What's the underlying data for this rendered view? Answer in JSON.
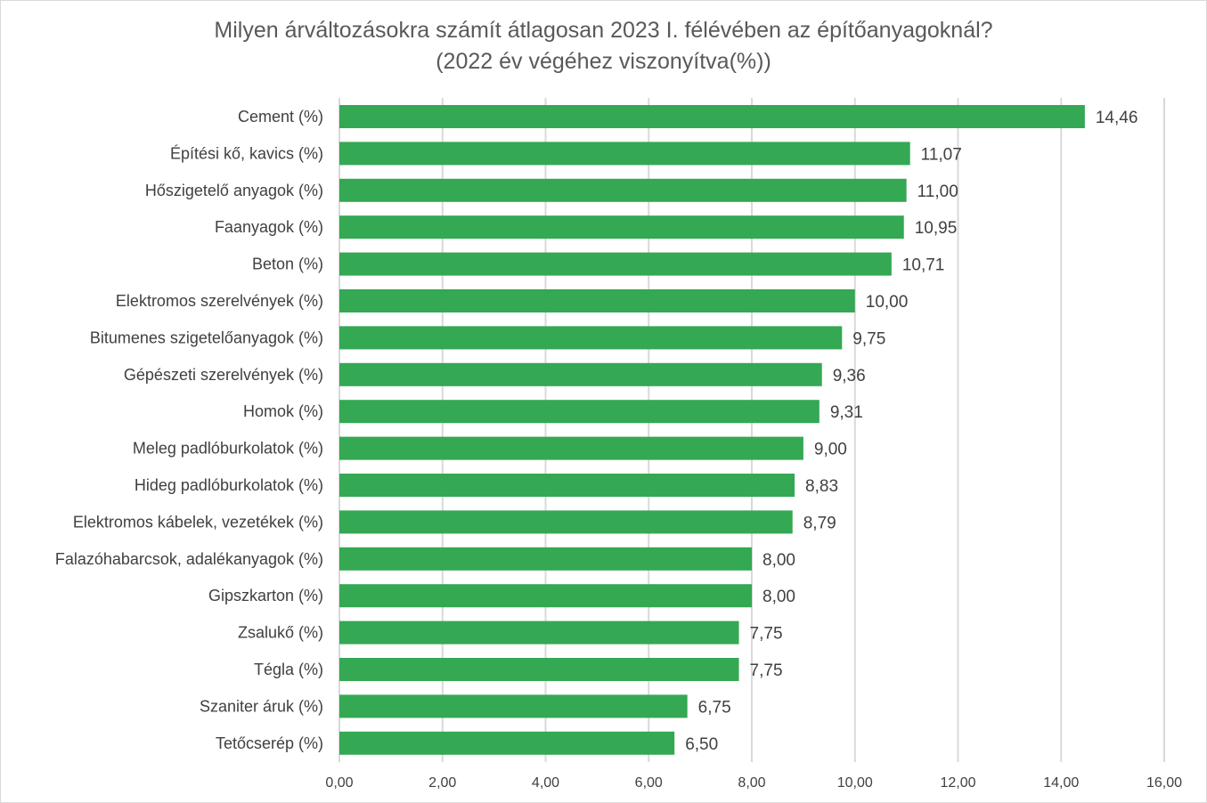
{
  "chart_data": {
    "type": "bar",
    "orientation": "horizontal",
    "title": "Milyen árváltozásokra számít átlagosan 2023 I. félévében az építőanyagoknál?",
    "subtitle": "(2022 év végéhez viszonyítva(%))",
    "categories": [
      "Cement (%)",
      "Építési kő, kavics (%)",
      "Hőszigetelő anyagok (%)",
      "Faanyagok (%)",
      "Beton (%)",
      "Elektromos szerelvények (%)",
      "Bitumenes szigetelőanyagok (%)",
      "Gépészeti szerelvények (%)",
      "Homok (%)",
      "Meleg padlóburkolatok (%)",
      "Hideg padlóburkolatok (%)",
      "Elektromos kábelek, vezetékek (%)",
      "Falazóhabarcsok, adalékanyagok (%)",
      "Gipszkarton (%)",
      "Zsalukő (%)",
      "Tégla (%)",
      "Szaniter áruk (%)",
      "Tetőcserép (%)"
    ],
    "values": [
      14.46,
      11.07,
      11.0,
      10.95,
      10.71,
      10.0,
      9.75,
      9.36,
      9.31,
      9.0,
      8.83,
      8.79,
      8.0,
      8.0,
      7.75,
      7.75,
      6.75,
      6.5
    ],
    "data_labels": [
      "14,46",
      "11,07",
      "11,00",
      "10,95",
      "10,71",
      "10,00",
      "9,75",
      "9,36",
      "9,31",
      "9,00",
      "8,83",
      "8,79",
      "8,00",
      "8,00",
      "7,75",
      "7,75",
      "6,75",
      "6,50"
    ],
    "xlim": [
      0,
      16
    ],
    "x_ticks": [
      "0,00",
      "2,00",
      "4,00",
      "6,00",
      "8,00",
      "10,00",
      "12,00",
      "14,00",
      "16,00"
    ],
    "grid": "vertical",
    "legend": "none",
    "bar_color": "#34a853"
  }
}
